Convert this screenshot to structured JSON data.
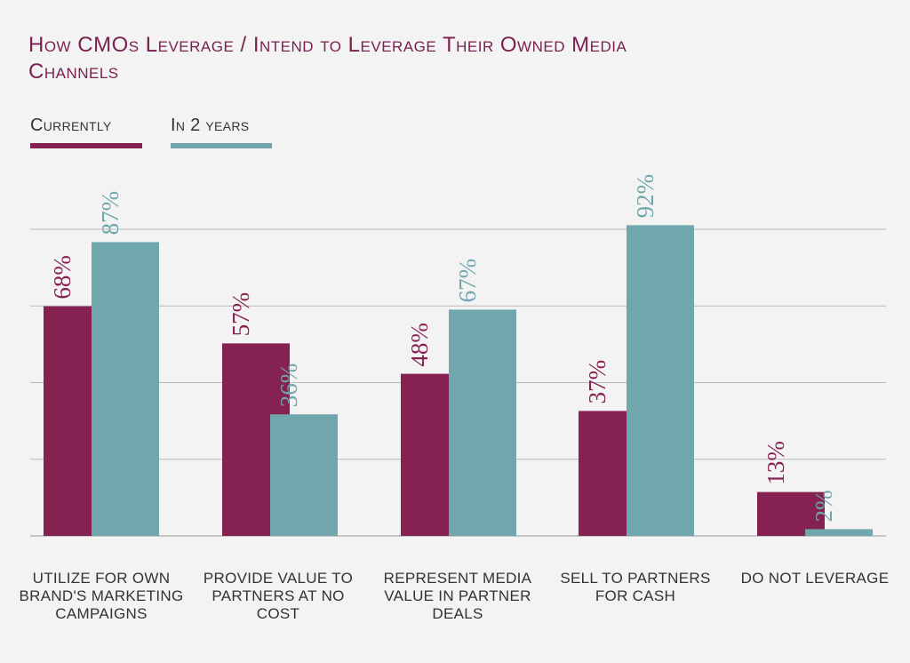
{
  "chart_data": {
    "type": "bar",
    "title": "How CMOs Leverage / Intend to Leverage Their Owned Media Channels",
    "categories": [
      "Utilize for own brand's marketing campaigns",
      "Provide value to partners at no cost",
      "Represent media value in partner deals",
      "Sell to partners for cash",
      "Do not leverage"
    ],
    "series": [
      {
        "name": "Currently",
        "values": [
          68,
          57,
          48,
          37,
          13
        ],
        "labels": [
          "68%",
          "57%",
          "48%",
          "37%",
          "13%"
        ],
        "color": "#862252"
      },
      {
        "name": "In 2 years",
        "values": [
          87,
          36,
          67,
          92,
          2
        ],
        "labels": [
          "87%",
          "36%",
          "67%",
          "92%",
          "2%"
        ],
        "color": "#70a7ad"
      }
    ],
    "ylim": [
      0,
      100
    ],
    "grid": true,
    "legend": "top-left",
    "xlabel": "",
    "ylabel": ""
  }
}
